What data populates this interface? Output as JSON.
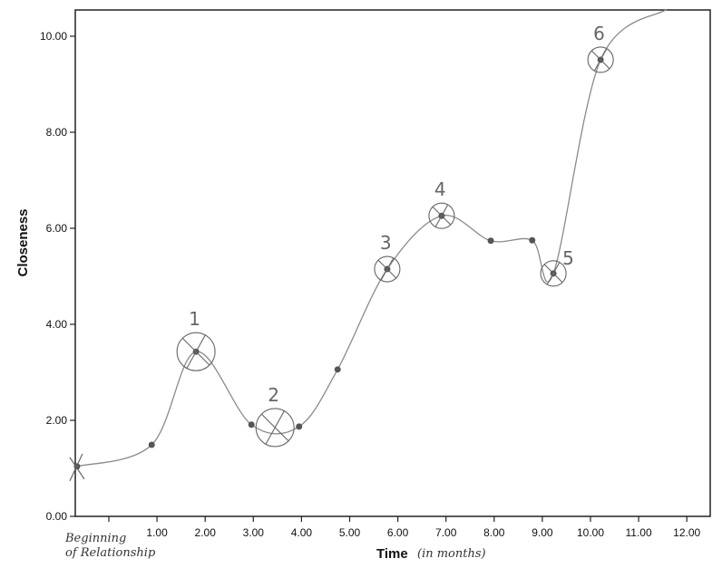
{
  "chart_data": {
    "type": "line",
    "title": "",
    "xlabel": "Time",
    "xlabel_note": "(in months)",
    "ylabel": "Closeness",
    "xlim": [
      -0.7,
      12.5
    ],
    "ylim": [
      0,
      10.5
    ],
    "x_ticks": [
      0,
      1,
      2,
      3,
      4,
      5,
      6,
      7,
      8,
      9,
      10,
      11,
      12
    ],
    "x_tick_labels": [
      "",
      "1.00",
      "2.00",
      "3.00",
      "4.00",
      "5.00",
      "6.00",
      "7.00",
      "8.00",
      "9.00",
      "10.00",
      "11.00",
      "12.00"
    ],
    "x_origin_label": [
      "Beginning",
      "of Relationship"
    ],
    "y_ticks": [
      0,
      2,
      4,
      6,
      8,
      10
    ],
    "y_tick_labels": [
      "0.00",
      "2.00",
      "4.00",
      "6.00",
      "8.00",
      "10.00"
    ],
    "grid": false,
    "series": [
      {
        "name": "Closeness",
        "x": [
          -0.66,
          0.89,
          1.81,
          2.96,
          3.95,
          4.75,
          5.78,
          6.91,
          7.93,
          8.79,
          9.23,
          10.21
        ],
        "y": [
          1.04,
          1.49,
          3.43,
          1.91,
          1.87,
          3.06,
          5.15,
          6.26,
          5.74,
          5.75,
          5.06,
          9.51
        ],
        "continues_to": [
          11.58,
          10.56
        ]
      }
    ],
    "annotations": [
      {
        "label": "1",
        "x": 1.81,
        "y": 3.43
      },
      {
        "label": "2",
        "x": 3.45,
        "y": 1.85
      },
      {
        "label": "3",
        "x": 5.78,
        "y": 5.15
      },
      {
        "label": "4",
        "x": 6.91,
        "y": 6.26
      },
      {
        "label": "5",
        "x": 9.23,
        "y": 5.06
      },
      {
        "label": "6",
        "x": 10.21,
        "y": 9.51
      }
    ],
    "colors": {
      "line": "#8a8a8a",
      "point": "#555555",
      "axis": "#222222",
      "annotation": "#666666"
    }
  }
}
